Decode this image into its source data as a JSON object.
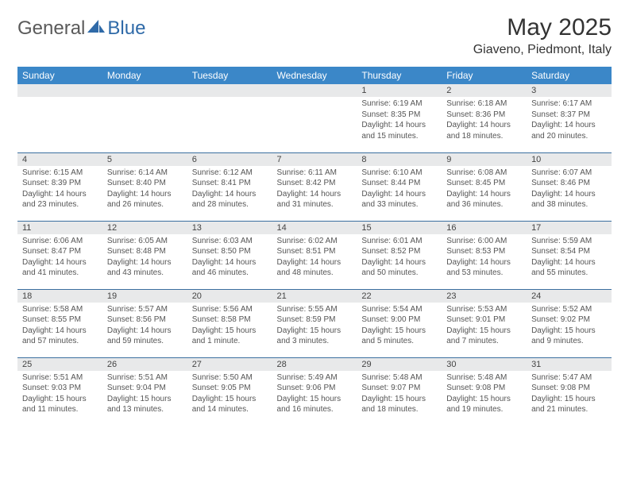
{
  "logo": {
    "word1": "General",
    "word2": "Blue"
  },
  "header": {
    "month_title": "May 2025",
    "location": "Giaveno, Piedmont, Italy"
  },
  "style": {
    "header_blue": "#3b87c8",
    "row_divider": "#3b6fa0",
    "grey_band": "#e8e9ea",
    "logo_dark": "#5a5a5a",
    "logo_blue": "#2f6aa8",
    "background": "#ffffff",
    "text_dark": "#333333",
    "text_grey": "#555555",
    "day_header_fontsize": 12,
    "month_title_fontsize": 30,
    "location_fontsize": 16,
    "cell_fontsize": 10
  },
  "calendar": {
    "day_headers": [
      "Sunday",
      "Monday",
      "Tuesday",
      "Wednesday",
      "Thursday",
      "Friday",
      "Saturday"
    ],
    "weeks": [
      [
        null,
        null,
        null,
        null,
        {
          "n": "1",
          "sunrise": "Sunrise: 6:19 AM",
          "sunset": "Sunset: 8:35 PM",
          "daylight": "Daylight: 14 hours and 15 minutes."
        },
        {
          "n": "2",
          "sunrise": "Sunrise: 6:18 AM",
          "sunset": "Sunset: 8:36 PM",
          "daylight": "Daylight: 14 hours and 18 minutes."
        },
        {
          "n": "3",
          "sunrise": "Sunrise: 6:17 AM",
          "sunset": "Sunset: 8:37 PM",
          "daylight": "Daylight: 14 hours and 20 minutes."
        }
      ],
      [
        {
          "n": "4",
          "sunrise": "Sunrise: 6:15 AM",
          "sunset": "Sunset: 8:39 PM",
          "daylight": "Daylight: 14 hours and 23 minutes."
        },
        {
          "n": "5",
          "sunrise": "Sunrise: 6:14 AM",
          "sunset": "Sunset: 8:40 PM",
          "daylight": "Daylight: 14 hours and 26 minutes."
        },
        {
          "n": "6",
          "sunrise": "Sunrise: 6:12 AM",
          "sunset": "Sunset: 8:41 PM",
          "daylight": "Daylight: 14 hours and 28 minutes."
        },
        {
          "n": "7",
          "sunrise": "Sunrise: 6:11 AM",
          "sunset": "Sunset: 8:42 PM",
          "daylight": "Daylight: 14 hours and 31 minutes."
        },
        {
          "n": "8",
          "sunrise": "Sunrise: 6:10 AM",
          "sunset": "Sunset: 8:44 PM",
          "daylight": "Daylight: 14 hours and 33 minutes."
        },
        {
          "n": "9",
          "sunrise": "Sunrise: 6:08 AM",
          "sunset": "Sunset: 8:45 PM",
          "daylight": "Daylight: 14 hours and 36 minutes."
        },
        {
          "n": "10",
          "sunrise": "Sunrise: 6:07 AM",
          "sunset": "Sunset: 8:46 PM",
          "daylight": "Daylight: 14 hours and 38 minutes."
        }
      ],
      [
        {
          "n": "11",
          "sunrise": "Sunrise: 6:06 AM",
          "sunset": "Sunset: 8:47 PM",
          "daylight": "Daylight: 14 hours and 41 minutes."
        },
        {
          "n": "12",
          "sunrise": "Sunrise: 6:05 AM",
          "sunset": "Sunset: 8:48 PM",
          "daylight": "Daylight: 14 hours and 43 minutes."
        },
        {
          "n": "13",
          "sunrise": "Sunrise: 6:03 AM",
          "sunset": "Sunset: 8:50 PM",
          "daylight": "Daylight: 14 hours and 46 minutes."
        },
        {
          "n": "14",
          "sunrise": "Sunrise: 6:02 AM",
          "sunset": "Sunset: 8:51 PM",
          "daylight": "Daylight: 14 hours and 48 minutes."
        },
        {
          "n": "15",
          "sunrise": "Sunrise: 6:01 AM",
          "sunset": "Sunset: 8:52 PM",
          "daylight": "Daylight: 14 hours and 50 minutes."
        },
        {
          "n": "16",
          "sunrise": "Sunrise: 6:00 AM",
          "sunset": "Sunset: 8:53 PM",
          "daylight": "Daylight: 14 hours and 53 minutes."
        },
        {
          "n": "17",
          "sunrise": "Sunrise: 5:59 AM",
          "sunset": "Sunset: 8:54 PM",
          "daylight": "Daylight: 14 hours and 55 minutes."
        }
      ],
      [
        {
          "n": "18",
          "sunrise": "Sunrise: 5:58 AM",
          "sunset": "Sunset: 8:55 PM",
          "daylight": "Daylight: 14 hours and 57 minutes."
        },
        {
          "n": "19",
          "sunrise": "Sunrise: 5:57 AM",
          "sunset": "Sunset: 8:56 PM",
          "daylight": "Daylight: 14 hours and 59 minutes."
        },
        {
          "n": "20",
          "sunrise": "Sunrise: 5:56 AM",
          "sunset": "Sunset: 8:58 PM",
          "daylight": "Daylight: 15 hours and 1 minute."
        },
        {
          "n": "21",
          "sunrise": "Sunrise: 5:55 AM",
          "sunset": "Sunset: 8:59 PM",
          "daylight": "Daylight: 15 hours and 3 minutes."
        },
        {
          "n": "22",
          "sunrise": "Sunrise: 5:54 AM",
          "sunset": "Sunset: 9:00 PM",
          "daylight": "Daylight: 15 hours and 5 minutes."
        },
        {
          "n": "23",
          "sunrise": "Sunrise: 5:53 AM",
          "sunset": "Sunset: 9:01 PM",
          "daylight": "Daylight: 15 hours and 7 minutes."
        },
        {
          "n": "24",
          "sunrise": "Sunrise: 5:52 AM",
          "sunset": "Sunset: 9:02 PM",
          "daylight": "Daylight: 15 hours and 9 minutes."
        }
      ],
      [
        {
          "n": "25",
          "sunrise": "Sunrise: 5:51 AM",
          "sunset": "Sunset: 9:03 PM",
          "daylight": "Daylight: 15 hours and 11 minutes."
        },
        {
          "n": "26",
          "sunrise": "Sunrise: 5:51 AM",
          "sunset": "Sunset: 9:04 PM",
          "daylight": "Daylight: 15 hours and 13 minutes."
        },
        {
          "n": "27",
          "sunrise": "Sunrise: 5:50 AM",
          "sunset": "Sunset: 9:05 PM",
          "daylight": "Daylight: 15 hours and 14 minutes."
        },
        {
          "n": "28",
          "sunrise": "Sunrise: 5:49 AM",
          "sunset": "Sunset: 9:06 PM",
          "daylight": "Daylight: 15 hours and 16 minutes."
        },
        {
          "n": "29",
          "sunrise": "Sunrise: 5:48 AM",
          "sunset": "Sunset: 9:07 PM",
          "daylight": "Daylight: 15 hours and 18 minutes."
        },
        {
          "n": "30",
          "sunrise": "Sunrise: 5:48 AM",
          "sunset": "Sunset: 9:08 PM",
          "daylight": "Daylight: 15 hours and 19 minutes."
        },
        {
          "n": "31",
          "sunrise": "Sunrise: 5:47 AM",
          "sunset": "Sunset: 9:08 PM",
          "daylight": "Daylight: 15 hours and 21 minutes."
        }
      ]
    ]
  }
}
